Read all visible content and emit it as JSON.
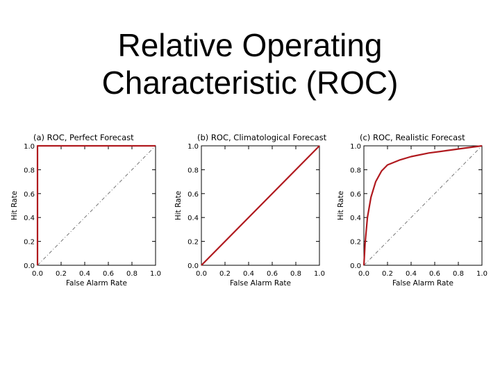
{
  "slide": {
    "title_line1": "Relative Operating",
    "title_line2": "Characteristic (ROC)"
  },
  "colors": {
    "roc_curve": "#b0191e",
    "diagonal": "#666666",
    "axes": "#000000"
  },
  "chart_data": [
    {
      "type": "line",
      "title": "(a) ROC, Perfect Forecast",
      "xlabel": "False Alarm Rate",
      "ylabel": "Hit Rate",
      "xlim": [
        0,
        1
      ],
      "ylim": [
        0,
        1
      ],
      "xticks": [
        "0.0",
        "0.2",
        "0.4",
        "0.6",
        "0.8",
        "1.0"
      ],
      "yticks": [
        "0.0",
        "0.2",
        "0.4",
        "0.6",
        "0.8",
        "1.0"
      ],
      "grid": false,
      "reference_line": "dashed diagonal",
      "series": [
        {
          "x": [
            0,
            0,
            1
          ],
          "y": [
            0,
            1,
            1
          ]
        }
      ]
    },
    {
      "type": "line",
      "title": "(b) ROC, Climatological Forecast",
      "xlabel": "False Alarm Rate",
      "ylabel": "Hit Rate",
      "xlim": [
        0,
        1
      ],
      "ylim": [
        0,
        1
      ],
      "xticks": [
        "0.0",
        "0.2",
        "0.4",
        "0.6",
        "0.8",
        "1.0"
      ],
      "yticks": [
        "0.0",
        "0.2",
        "0.4",
        "0.6",
        "0.8",
        "1.0"
      ],
      "grid": false,
      "reference_line": "dashed diagonal",
      "series": [
        {
          "x": [
            0,
            1
          ],
          "y": [
            0,
            1
          ]
        }
      ]
    },
    {
      "type": "line",
      "title": "(c) ROC, Realistic Forecast",
      "xlabel": "False Alarm Rate",
      "ylabel": "Hit Rate",
      "xlim": [
        0,
        1
      ],
      "ylim": [
        0,
        1
      ],
      "xticks": [
        "0.0",
        "0.2",
        "0.4",
        "0.6",
        "0.8",
        "1.0"
      ],
      "yticks": [
        "0.0",
        "0.2",
        "0.4",
        "0.6",
        "0.8",
        "1.0"
      ],
      "grid": false,
      "reference_line": "dashed diagonal",
      "series": [
        {
          "x": [
            0,
            0.01,
            0.03,
            0.06,
            0.1,
            0.15,
            0.2,
            0.3,
            0.4,
            0.55,
            0.7,
            0.85,
            1.0
          ],
          "y": [
            0,
            0.18,
            0.4,
            0.57,
            0.7,
            0.79,
            0.84,
            0.88,
            0.91,
            0.94,
            0.96,
            0.98,
            1.0
          ]
        }
      ]
    }
  ]
}
